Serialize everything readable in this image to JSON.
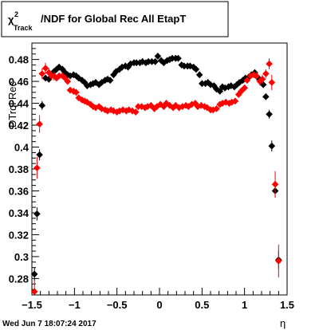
{
  "chart_data": {
    "type": "scatter",
    "title_symbol": "χ",
    "title_sup": "2",
    "title_sub": "Track",
    "title_rest": "/NDF for Global Rec All EtapT",
    "xlabel": "η",
    "ylabel": "DTrql Rec",
    "timestamp": "Wed Jun  7 18:07:24 2017",
    "xlim": [
      -1.5,
      1.5
    ],
    "ylim": [
      0.265,
      0.495
    ],
    "x_ticks": [
      -1.5,
      -1,
      -0.5,
      0,
      0.5,
      1,
      1.5
    ],
    "x_tick_labels": [
      "−1.5",
      "−1",
      "−0.5",
      "0",
      "0.5",
      "1",
      "1.5"
    ],
    "y_ticks": [
      0.28,
      0.3,
      0.32,
      0.34,
      0.36,
      0.38,
      0.4,
      0.42,
      0.44,
      0.46,
      0.48
    ],
    "y_tick_labels": [
      "0.28",
      "0.3",
      "0.32",
      "0.34",
      "0.36",
      "0.38",
      "0.4",
      "0.42",
      "0.44",
      "0.46",
      "0.48"
    ],
    "series": [
      {
        "color": "#000000",
        "points": [
          [
            -1.47,
            0.284,
            0.006
          ],
          [
            -1.44,
            0.339,
            0.006
          ],
          [
            -1.41,
            0.393,
            0.005
          ],
          [
            -1.38,
            0.438,
            0.004
          ],
          [
            -1.34,
            0.463,
            0.003
          ],
          [
            -1.3,
            0.462,
            0.003
          ],
          [
            -1.27,
            0.466,
            0.003
          ],
          [
            -1.24,
            0.469,
            0.003
          ],
          [
            -1.21,
            0.471,
            0.003
          ],
          [
            -1.18,
            0.473,
            0.003
          ],
          [
            -1.14,
            0.471,
            0.003
          ],
          [
            -1.11,
            0.468,
            0.003
          ],
          [
            -1.08,
            0.466,
            0.003
          ],
          [
            -1.05,
            0.465,
            0.003
          ],
          [
            -1.01,
            0.466,
            0.003
          ],
          [
            -0.98,
            0.465,
            0.003
          ],
          [
            -0.95,
            0.463,
            0.003
          ],
          [
            -0.91,
            0.461,
            0.003
          ],
          [
            -0.88,
            0.459,
            0.003
          ],
          [
            -0.85,
            0.456,
            0.003
          ],
          [
            -0.81,
            0.457,
            0.003
          ],
          [
            -0.78,
            0.458,
            0.003
          ],
          [
            -0.75,
            0.459,
            0.003
          ],
          [
            -0.71,
            0.457,
            0.003
          ],
          [
            -0.68,
            0.459,
            0.003
          ],
          [
            -0.64,
            0.461,
            0.003
          ],
          [
            -0.61,
            0.462,
            0.003
          ],
          [
            -0.58,
            0.461,
            0.003
          ],
          [
            -0.54,
            0.466,
            0.003
          ],
          [
            -0.51,
            0.469,
            0.003
          ],
          [
            -0.47,
            0.471,
            0.003
          ],
          [
            -0.44,
            0.473,
            0.003
          ],
          [
            -0.4,
            0.474,
            0.003
          ],
          [
            -0.37,
            0.473,
            0.003
          ],
          [
            -0.34,
            0.476,
            0.003
          ],
          [
            -0.3,
            0.477,
            0.003
          ],
          [
            -0.27,
            0.477,
            0.003
          ],
          [
            -0.23,
            0.477,
            0.003
          ],
          [
            -0.2,
            0.478,
            0.003
          ],
          [
            -0.16,
            0.477,
            0.003
          ],
          [
            -0.13,
            0.478,
            0.003
          ],
          [
            -0.09,
            0.478,
            0.003
          ],
          [
            -0.05,
            0.478,
            0.003
          ],
          [
            -0.02,
            0.483,
            0.003
          ],
          [
            0.02,
            0.479,
            0.003
          ],
          [
            0.05,
            0.477,
            0.003
          ],
          [
            0.09,
            0.479,
            0.003
          ],
          [
            0.12,
            0.48,
            0.003
          ],
          [
            0.15,
            0.481,
            0.003
          ],
          [
            0.19,
            0.481,
            0.003
          ],
          [
            0.22,
            0.481,
            0.003
          ],
          [
            0.26,
            0.475,
            0.003
          ],
          [
            0.29,
            0.474,
            0.003
          ],
          [
            0.33,
            0.474,
            0.003
          ],
          [
            0.36,
            0.474,
            0.003
          ],
          [
            0.4,
            0.473,
            0.003
          ],
          [
            0.43,
            0.471,
            0.003
          ],
          [
            0.47,
            0.466,
            0.003
          ],
          [
            0.5,
            0.458,
            0.003
          ],
          [
            0.54,
            0.458,
            0.003
          ],
          [
            0.57,
            0.459,
            0.003
          ],
          [
            0.6,
            0.457,
            0.003
          ],
          [
            0.64,
            0.456,
            0.003
          ],
          [
            0.67,
            0.453,
            0.003
          ],
          [
            0.71,
            0.451,
            0.003
          ],
          [
            0.74,
            0.455,
            0.003
          ],
          [
            0.77,
            0.454,
            0.003
          ],
          [
            0.81,
            0.455,
            0.003
          ],
          [
            0.84,
            0.456,
            0.003
          ],
          [
            0.88,
            0.455,
            0.003
          ],
          [
            0.91,
            0.457,
            0.003
          ],
          [
            0.94,
            0.459,
            0.003
          ],
          [
            0.98,
            0.461,
            0.003
          ],
          [
            1.01,
            0.463,
            0.003
          ],
          [
            1.05,
            0.464,
            0.003
          ],
          [
            1.08,
            0.466,
            0.003
          ],
          [
            1.12,
            0.468,
            0.003
          ],
          [
            1.15,
            0.464,
            0.003
          ],
          [
            1.19,
            0.461,
            0.003
          ],
          [
            1.22,
            0.457,
            0.003
          ],
          [
            1.25,
            0.446,
            0.003
          ],
          [
            1.29,
            0.43,
            0.004
          ],
          [
            1.32,
            0.401,
            0.005
          ],
          [
            1.36,
            0.36,
            0.006
          ],
          [
            1.4,
            0.297,
            0.008
          ]
        ]
      },
      {
        "color": "#ff0000",
        "points": [
          [
            -1.47,
            0.268,
            0.01
          ],
          [
            -1.44,
            0.381,
            0.01
          ],
          [
            -1.41,
            0.421,
            0.008
          ],
          [
            -1.38,
            0.467,
            0.005
          ],
          [
            -1.34,
            0.472,
            0.005
          ],
          [
            -1.3,
            0.468,
            0.004
          ],
          [
            -1.27,
            0.465,
            0.004
          ],
          [
            -1.24,
            0.465,
            0.004
          ],
          [
            -1.21,
            0.463,
            0.003
          ],
          [
            -1.18,
            0.465,
            0.003
          ],
          [
            -1.14,
            0.465,
            0.003
          ],
          [
            -1.11,
            0.463,
            0.003
          ],
          [
            -1.08,
            0.46,
            0.003
          ],
          [
            -1.05,
            0.452,
            0.003
          ],
          [
            -1.01,
            0.451,
            0.003
          ],
          [
            -0.98,
            0.45,
            0.003
          ],
          [
            -0.95,
            0.445,
            0.003
          ],
          [
            -0.91,
            0.443,
            0.003
          ],
          [
            -0.88,
            0.442,
            0.003
          ],
          [
            -0.85,
            0.441,
            0.003
          ],
          [
            -0.81,
            0.439,
            0.003
          ],
          [
            -0.78,
            0.437,
            0.003
          ],
          [
            -0.75,
            0.436,
            0.003
          ],
          [
            -0.71,
            0.437,
            0.003
          ],
          [
            -0.68,
            0.435,
            0.003
          ],
          [
            -0.64,
            0.434,
            0.003
          ],
          [
            -0.61,
            0.433,
            0.003
          ],
          [
            -0.57,
            0.434,
            0.003
          ],
          [
            -0.54,
            0.433,
            0.003
          ],
          [
            -0.5,
            0.432,
            0.003
          ],
          [
            -0.47,
            0.433,
            0.003
          ],
          [
            -0.43,
            0.434,
            0.003
          ],
          [
            -0.39,
            0.433,
            0.003
          ],
          [
            -0.36,
            0.434,
            0.003
          ],
          [
            -0.32,
            0.433,
            0.003
          ],
          [
            -0.28,
            0.432,
            0.003
          ],
          [
            -0.25,
            0.437,
            0.003
          ],
          [
            -0.21,
            0.437,
            0.003
          ],
          [
            -0.17,
            0.436,
            0.003
          ],
          [
            -0.14,
            0.437,
            0.003
          ],
          [
            -0.1,
            0.438,
            0.003
          ],
          [
            -0.06,
            0.435,
            0.003
          ],
          [
            -0.03,
            0.437,
            0.003
          ],
          [
            0.01,
            0.439,
            0.003
          ],
          [
            0.05,
            0.437,
            0.003
          ],
          [
            0.08,
            0.44,
            0.003
          ],
          [
            0.12,
            0.438,
            0.003
          ],
          [
            0.16,
            0.436,
            0.003
          ],
          [
            0.19,
            0.438,
            0.003
          ],
          [
            0.23,
            0.436,
            0.003
          ],
          [
            0.27,
            0.437,
            0.003
          ],
          [
            0.31,
            0.438,
            0.003
          ],
          [
            0.34,
            0.437,
            0.003
          ],
          [
            0.38,
            0.439,
            0.003
          ],
          [
            0.42,
            0.44,
            0.003
          ],
          [
            0.45,
            0.437,
            0.003
          ],
          [
            0.49,
            0.438,
            0.003
          ],
          [
            0.53,
            0.437,
            0.003
          ],
          [
            0.56,
            0.436,
            0.003
          ],
          [
            0.6,
            0.434,
            0.003
          ],
          [
            0.63,
            0.434,
            0.003
          ],
          [
            0.67,
            0.435,
            0.003
          ],
          [
            0.71,
            0.439,
            0.003
          ],
          [
            0.74,
            0.44,
            0.003
          ],
          [
            0.78,
            0.441,
            0.003
          ],
          [
            0.82,
            0.44,
            0.003
          ],
          [
            0.85,
            0.441,
            0.003
          ],
          [
            0.89,
            0.442,
            0.003
          ],
          [
            0.93,
            0.448,
            0.003
          ],
          [
            0.96,
            0.451,
            0.003
          ],
          [
            1.0,
            0.454,
            0.003
          ],
          [
            1.03,
            0.461,
            0.003
          ],
          [
            1.07,
            0.465,
            0.003
          ],
          [
            1.11,
            0.466,
            0.003
          ],
          [
            1.14,
            0.465,
            0.004
          ],
          [
            1.18,
            0.46,
            0.004
          ],
          [
            1.21,
            0.462,
            0.004
          ],
          [
            1.25,
            0.467,
            0.004
          ],
          [
            1.29,
            0.476,
            0.005
          ],
          [
            1.32,
            0.459,
            0.007
          ],
          [
            1.36,
            0.366,
            0.012
          ],
          [
            1.4,
            0.296,
            0.015
          ]
        ]
      }
    ]
  }
}
